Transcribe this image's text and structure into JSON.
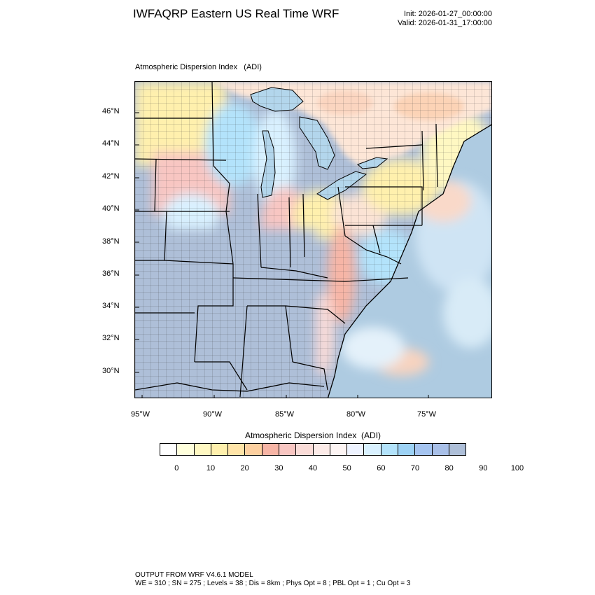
{
  "header": {
    "title": "IWFAQRP Eastern US Real Time WRF",
    "init": "Init: 2026-01-27_00:00:00",
    "valid": "Valid: 2026-01-31_17:00:00"
  },
  "plot": {
    "field_label": "Atmospheric Dispersion Index   (ADI)",
    "lat_labels": [
      "46°N",
      "44°N",
      "42°N",
      "40°N",
      "38°N",
      "36°N",
      "34°N",
      "32°N",
      "30°N"
    ],
    "lon_labels": [
      "95°W",
      "90°W",
      "85°W",
      "80°W",
      "75°W"
    ]
  },
  "legend": {
    "title": "Atmospheric Dispersion Index  (ADI)",
    "colors": [
      "#ffffff",
      "#ffffdc",
      "#fff8c2",
      "#fff0ad",
      "#ffe4a8",
      "#fdd0a0",
      "#f7b5a6",
      "#f8c6c2",
      "#fadcd8",
      "#fcebe8",
      "#fdf5f4",
      "#eef3ff",
      "#d9f1ff",
      "#b3e3fb",
      "#9dd2f5",
      "#a5c4f0",
      "#a9c0e8",
      "#aebfd8"
    ],
    "labels": [
      "0",
      "10",
      "20",
      "30",
      "40",
      "50",
      "60",
      "70",
      "80",
      "90",
      "100"
    ]
  },
  "footer": {
    "line1": "OUTPUT FROM WRF V4.6.1 MODEL",
    "line2": "WE = 310 ; SN = 275 ; Levels = 38 ; Dis = 8km ; Phys Opt = 8 ; PBL Opt = 1 ; Cu Opt = 3"
  }
}
